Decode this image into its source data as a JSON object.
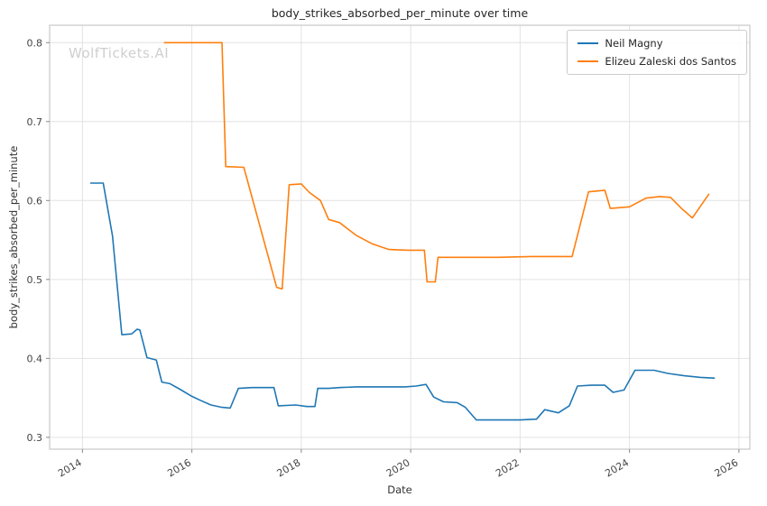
{
  "watermark": "WolfTickets.AI",
  "chart_data": {
    "type": "line",
    "title": "body_strikes_absorbed_per_minute over time",
    "xlabel": "Date",
    "ylabel": "body_strikes_absorbed_per_minute",
    "xlim": [
      2013.4,
      2026.2
    ],
    "ylim": [
      0.285,
      0.822
    ],
    "xticks": [
      2014,
      2016,
      2018,
      2020,
      2022,
      2024,
      2026
    ],
    "yticks": [
      0.3,
      0.4,
      0.5,
      0.6,
      0.7,
      0.8
    ],
    "grid": true,
    "legend_position": "upper right",
    "colors": {
      "grid": "#e2e2e2",
      "spine": "#c8c8c8",
      "tick": "#8a8a8a",
      "text": "#444444",
      "blue": "#1f77b4",
      "orange": "#ff7f0e"
    },
    "series": [
      {
        "name": "Neil Magny",
        "color": "#1f77b4",
        "points": [
          [
            2014.15,
            0.622
          ],
          [
            2014.38,
            0.622
          ],
          [
            2014.55,
            0.555
          ],
          [
            2014.72,
            0.43
          ],
          [
            2014.9,
            0.431
          ],
          [
            2015.0,
            0.437
          ],
          [
            2015.05,
            0.436
          ],
          [
            2015.18,
            0.401
          ],
          [
            2015.35,
            0.398
          ],
          [
            2015.45,
            0.37
          ],
          [
            2015.6,
            0.368
          ],
          [
            2015.78,
            0.361
          ],
          [
            2016.0,
            0.352
          ],
          [
            2016.15,
            0.347
          ],
          [
            2016.35,
            0.341
          ],
          [
            2016.55,
            0.338
          ],
          [
            2016.7,
            0.337
          ],
          [
            2016.85,
            0.362
          ],
          [
            2017.1,
            0.363
          ],
          [
            2017.5,
            0.363
          ],
          [
            2017.58,
            0.34
          ],
          [
            2017.9,
            0.341
          ],
          [
            2018.1,
            0.339
          ],
          [
            2018.25,
            0.339
          ],
          [
            2018.3,
            0.362
          ],
          [
            2018.5,
            0.362
          ],
          [
            2018.7,
            0.363
          ],
          [
            2019.0,
            0.364
          ],
          [
            2019.5,
            0.364
          ],
          [
            2019.9,
            0.364
          ],
          [
            2020.1,
            0.365
          ],
          [
            2020.28,
            0.367
          ],
          [
            2020.42,
            0.351
          ],
          [
            2020.6,
            0.345
          ],
          [
            2020.85,
            0.344
          ],
          [
            2021.0,
            0.338
          ],
          [
            2021.2,
            0.322
          ],
          [
            2021.6,
            0.322
          ],
          [
            2022.0,
            0.322
          ],
          [
            2022.3,
            0.323
          ],
          [
            2022.45,
            0.335
          ],
          [
            2022.7,
            0.331
          ],
          [
            2022.9,
            0.34
          ],
          [
            2023.05,
            0.365
          ],
          [
            2023.3,
            0.366
          ],
          [
            2023.55,
            0.366
          ],
          [
            2023.7,
            0.357
          ],
          [
            2023.9,
            0.36
          ],
          [
            2024.1,
            0.385
          ],
          [
            2024.45,
            0.385
          ],
          [
            2024.7,
            0.381
          ],
          [
            2025.0,
            0.378
          ],
          [
            2025.3,
            0.376
          ],
          [
            2025.55,
            0.375
          ]
        ]
      },
      {
        "name": "Elizeu Zaleski dos Santos",
        "color": "#ff7f0e",
        "points": [
          [
            2015.5,
            0.8
          ],
          [
            2016.55,
            0.8
          ],
          [
            2016.62,
            0.643
          ],
          [
            2016.95,
            0.642
          ],
          [
            2017.55,
            0.49
          ],
          [
            2017.65,
            0.488
          ],
          [
            2017.78,
            0.62
          ],
          [
            2018.0,
            0.621
          ],
          [
            2018.15,
            0.61
          ],
          [
            2018.35,
            0.6
          ],
          [
            2018.5,
            0.576
          ],
          [
            2018.7,
            0.572
          ],
          [
            2019.0,
            0.556
          ],
          [
            2019.3,
            0.545
          ],
          [
            2019.6,
            0.538
          ],
          [
            2019.95,
            0.537
          ],
          [
            2020.25,
            0.537
          ],
          [
            2020.3,
            0.497
          ],
          [
            2020.45,
            0.497
          ],
          [
            2020.5,
            0.528
          ],
          [
            2021.0,
            0.528
          ],
          [
            2021.6,
            0.528
          ],
          [
            2022.2,
            0.529
          ],
          [
            2022.95,
            0.529
          ],
          [
            2023.25,
            0.611
          ],
          [
            2023.55,
            0.613
          ],
          [
            2023.65,
            0.59
          ],
          [
            2024.0,
            0.592
          ],
          [
            2024.3,
            0.603
          ],
          [
            2024.55,
            0.605
          ],
          [
            2024.75,
            0.604
          ],
          [
            2024.95,
            0.59
          ],
          [
            2025.15,
            0.578
          ],
          [
            2025.45,
            0.608
          ]
        ]
      }
    ]
  }
}
